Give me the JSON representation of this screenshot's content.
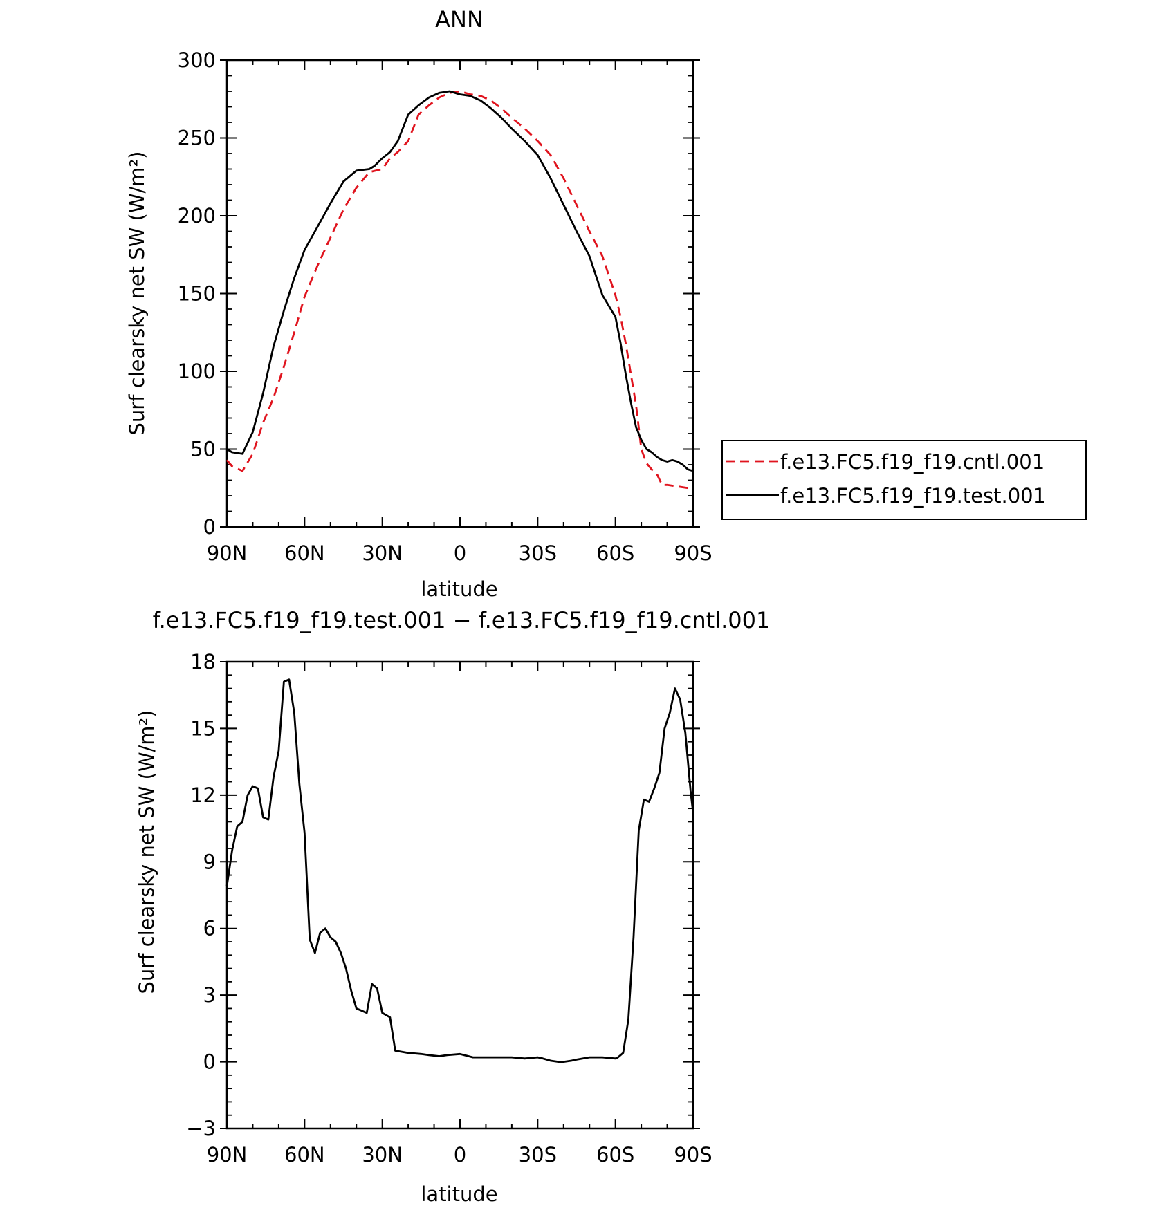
{
  "colors": {
    "cntl": "#e0141e",
    "test": "#000000"
  },
  "chart_data": [
    {
      "type": "line",
      "title": "ANN",
      "xlabel": "latitude",
      "ylabel": "Surf clearsky net SW (W/m²)",
      "xlim": [
        90,
        -90
      ],
      "ylim": [
        0,
        300
      ],
      "xticks": [
        {
          "value": 90,
          "label": "90N"
        },
        {
          "value": 60,
          "label": "60N"
        },
        {
          "value": 30,
          "label": "30N"
        },
        {
          "value": 0,
          "label": "0"
        },
        {
          "value": -30,
          "label": "30S"
        },
        {
          "value": -60,
          "label": "60S"
        },
        {
          "value": -90,
          "label": "90S"
        }
      ],
      "yticks": [
        {
          "value": 0,
          "label": "0"
        },
        {
          "value": 50,
          "label": "50"
        },
        {
          "value": 100,
          "label": "100"
        },
        {
          "value": 150,
          "label": "150"
        },
        {
          "value": 200,
          "label": "200"
        },
        {
          "value": 250,
          "label": "250"
        },
        {
          "value": 300,
          "label": "300"
        }
      ],
      "legend_position": "right",
      "series": [
        {
          "name": "f.e13.FC5.f19_f19.cntl.001",
          "style": "dashed",
          "x": [
            90,
            88,
            84,
            80,
            76,
            72,
            68,
            64,
            60,
            55,
            50,
            45,
            40,
            35,
            30,
            27,
            24,
            20,
            16,
            12,
            8,
            4,
            0,
            -4,
            -8,
            -12,
            -16,
            -20,
            -25,
            -30,
            -35,
            -40,
            -45,
            -50,
            -55,
            -60,
            -62,
            -64,
            -66,
            -68,
            -70,
            -72,
            -74,
            -76,
            -78,
            -80,
            -84,
            -88,
            -90
          ],
          "values": [
            43,
            39,
            36,
            47,
            67,
            83,
            103,
            125,
            148,
            168,
            186,
            204,
            218,
            228,
            230,
            237,
            241,
            248,
            265,
            271,
            276,
            279,
            280,
            278,
            277,
            274,
            269,
            263,
            256,
            248,
            239,
            224,
            207,
            190,
            174,
            149,
            135,
            118,
            98,
            78,
            50,
            41,
            37,
            34,
            27,
            27,
            26,
            25,
            25
          ]
        },
        {
          "name": "f.e13.FC5.f19_f19.test.001",
          "style": "solid",
          "x": [
            90,
            88,
            84,
            80,
            76,
            72,
            68,
            64,
            60,
            55,
            50,
            45,
            40,
            35,
            33,
            30,
            27,
            24,
            20,
            16,
            12,
            8,
            4,
            0,
            -4,
            -8,
            -12,
            -16,
            -20,
            -25,
            -30,
            -35,
            -40,
            -45,
            -50,
            -55,
            -60,
            -62,
            -64,
            -66,
            -68,
            -70,
            -72,
            -74,
            -76,
            -78,
            -80,
            -82,
            -84,
            -86,
            -88,
            -90
          ],
          "values": [
            50,
            48,
            47,
            61,
            86,
            116,
            139,
            160,
            178,
            193,
            208,
            222,
            229,
            230,
            232,
            237,
            241,
            248,
            265,
            271,
            276,
            279,
            280,
            278,
            277,
            274,
            269,
            263,
            256,
            248,
            239,
            224,
            207,
            190,
            174,
            149,
            135,
            118,
            98,
            80,
            64,
            56,
            50,
            48,
            45,
            43,
            42,
            43,
            42,
            40,
            37,
            36
          ]
        }
      ]
    },
    {
      "type": "line",
      "title": "f.e13.FC5.f19_f19.test.001 − f.e13.FC5.f19_f19.cntl.001",
      "xlabel": "latitude",
      "ylabel": "Surf clearsky net SW (W/m²)",
      "xlim": [
        90,
        -90
      ],
      "ylim": [
        -3,
        18
      ],
      "xticks": [
        {
          "value": 90,
          "label": "90N"
        },
        {
          "value": 60,
          "label": "60N"
        },
        {
          "value": 30,
          "label": "30N"
        },
        {
          "value": 0,
          "label": "0"
        },
        {
          "value": -30,
          "label": "30S"
        },
        {
          "value": -60,
          "label": "60S"
        },
        {
          "value": -90,
          "label": "90S"
        }
      ],
      "yticks": [
        {
          "value": -3,
          "label": "−3"
        },
        {
          "value": 0,
          "label": "0"
        },
        {
          "value": 3,
          "label": "3"
        },
        {
          "value": 6,
          "label": "6"
        },
        {
          "value": 9,
          "label": "9"
        },
        {
          "value": 12,
          "label": "12"
        },
        {
          "value": 15,
          "label": "15"
        },
        {
          "value": 18,
          "label": "18"
        }
      ],
      "series": [
        {
          "style": "solid",
          "x": [
            90,
            88,
            86,
            84,
            82,
            80,
            78,
            76,
            74,
            72,
            70,
            68,
            66,
            64,
            62,
            60,
            58,
            56,
            54,
            52,
            50,
            48,
            46,
            44,
            42,
            40,
            38,
            36,
            34,
            32,
            30,
            27,
            25,
            20,
            15,
            12,
            8,
            5,
            0,
            -5,
            -10,
            -15,
            -20,
            -25,
            -30,
            -32,
            -35,
            -38,
            -40,
            -43,
            -45,
            -50,
            -55,
            -60,
            -61,
            -63,
            -65,
            -67,
            -69,
            -71,
            -73,
            -75,
            -77,
            -79,
            -81,
            -83,
            -85,
            -87,
            -89,
            -90
          ],
          "values": [
            7.9,
            9.5,
            10.6,
            10.8,
            12.0,
            12.4,
            12.3,
            11.0,
            10.9,
            12.8,
            14.0,
            17.1,
            17.2,
            15.7,
            12.5,
            10.3,
            5.5,
            4.9,
            5.8,
            6.0,
            5.6,
            5.4,
            4.9,
            4.2,
            3.2,
            2.4,
            2.3,
            2.2,
            3.5,
            3.3,
            2.2,
            2.0,
            0.5,
            0.4,
            0.35,
            0.3,
            0.25,
            0.3,
            0.35,
            0.2,
            0.2,
            0.2,
            0.2,
            0.15,
            0.2,
            0.15,
            0.05,
            0.0,
            0.0,
            0.05,
            0.1,
            0.2,
            0.2,
            0.15,
            0.2,
            0.4,
            1.9,
            5.6,
            10.4,
            11.8,
            11.7,
            12.3,
            13.0,
            15.0,
            15.7,
            16.8,
            16.3,
            14.8,
            12.2,
            11.2
          ]
        }
      ]
    }
  ]
}
